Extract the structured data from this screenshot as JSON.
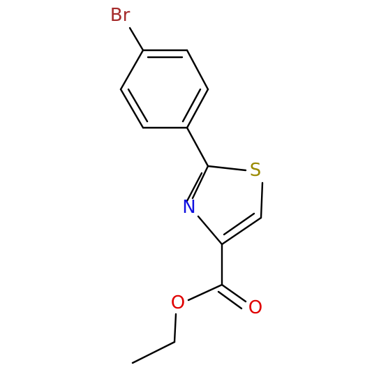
{
  "atoms": [
    {
      "label": "Br"
    },
    {
      "label": "S"
    },
    {
      "label": "N"
    },
    {
      "label": "O"
    },
    {
      "label": "O"
    }
  ]
}
